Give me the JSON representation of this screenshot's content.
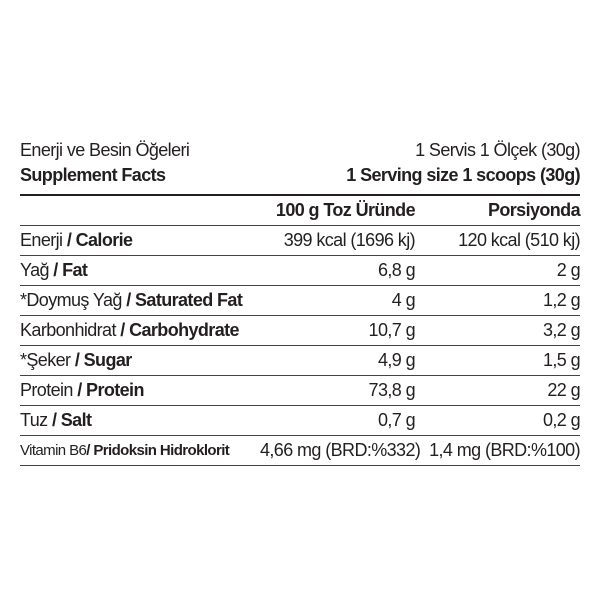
{
  "header": {
    "tr_title": "Enerji ve Besin Öğeleri",
    "tr_serving": "1 Servis 1 Ölçek (30g)",
    "en_title": "Supplement Facts",
    "en_serving": "1 Serving size 1 scoops (30g)"
  },
  "columns": [
    "",
    "100 g Toz Üründe",
    "Porsiyonda"
  ],
  "rows": [
    {
      "tr": "Enerji",
      "en": "Calorie",
      "per100": "399 kcal (1696 kj)",
      "serving": "120 kcal (510 kj)"
    },
    {
      "tr": "Yağ",
      "en": "Fat",
      "per100": "6,8 g",
      "serving": "2 g"
    },
    {
      "tr": "*Doymuş Yağ",
      "en": "Saturated Fat",
      "per100": "4 g",
      "serving": "1,2 g"
    },
    {
      "tr": "Karbonhidrat",
      "en": "Carbohydrate",
      "per100": "10,7 g",
      "serving": "3,2 g"
    },
    {
      "tr": "*Şeker",
      "en": "Sugar",
      "per100": "4,9 g",
      "serving": "1,5 g"
    },
    {
      "tr": "Protein",
      "en": "Protein",
      "per100": "73,8 g",
      "serving": "22 g"
    },
    {
      "tr": "Tuz",
      "en": "Salt",
      "per100": "0,7 g",
      "serving": "0,2 g"
    },
    {
      "tr": "Vitamin B6",
      "en": "Pridoksin Hidroklorit",
      "per100": "4,66 mg (BRD:%332)",
      "serving": "1,4 mg (BRD:%100)"
    }
  ]
}
